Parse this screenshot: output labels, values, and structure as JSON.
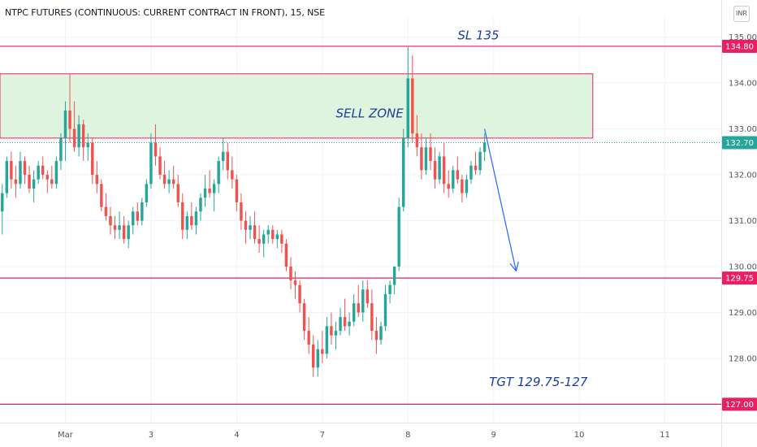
{
  "header": {
    "title": "NTPC FUTURES (CONTINUOUS: CURRENT CONTRACT IN FRONT), 15, NSE",
    "currency": "INR"
  },
  "chart_data": {
    "type": "candlestick",
    "title": "NTPC FUTURES (CONTINUOUS: CURRENT CONTRACT IN FRONT), 15, NSE",
    "ylim": [
      126.6,
      135.1
    ],
    "yticks": [
      "128.00",
      "129.00",
      "130.00",
      "131.00",
      "132.00",
      "133.00",
      "134.00",
      "135.00"
    ],
    "xticks": [
      {
        "label": "Mar",
        "index": 14
      },
      {
        "label": "3",
        "index": 33
      },
      {
        "label": "4",
        "index": 52
      },
      {
        "label": "7",
        "index": 71
      },
      {
        "label": "8",
        "index": 90
      },
      {
        "label": "9",
        "index": 109
      },
      {
        "label": "10",
        "index": 128
      },
      {
        "label": "11",
        "index": 147
      }
    ],
    "bar_count": 160,
    "candles": [
      [
        131.2,
        131.8,
        130.7,
        131.6
      ],
      [
        131.6,
        132.4,
        131.5,
        132.3
      ],
      [
        132.3,
        132.5,
        131.7,
        131.9
      ],
      [
        131.9,
        132.2,
        131.5,
        131.8
      ],
      [
        131.8,
        132.5,
        131.7,
        132.3
      ],
      [
        132.3,
        132.4,
        131.8,
        132.0
      ],
      [
        132.0,
        132.2,
        131.6,
        131.7
      ],
      [
        131.7,
        132.1,
        131.4,
        131.9
      ],
      [
        131.9,
        132.3,
        131.8,
        132.2
      ],
      [
        132.2,
        132.4,
        131.9,
        132.0
      ],
      [
        132.0,
        132.1,
        131.6,
        131.9
      ],
      [
        131.9,
        132.2,
        131.7,
        131.8
      ],
      [
        131.8,
        132.4,
        131.7,
        132.3
      ],
      [
        132.3,
        132.9,
        132.1,
        132.8
      ],
      [
        132.8,
        133.6,
        132.3,
        133.4
      ],
      [
        133.4,
        134.2,
        132.7,
        133.0
      ],
      [
        133.0,
        133.6,
        132.5,
        132.6
      ],
      [
        132.6,
        133.3,
        132.4,
        133.1
      ],
      [
        133.1,
        133.2,
        132.3,
        132.6
      ],
      [
        132.6,
        132.9,
        132.3,
        132.7
      ],
      [
        132.7,
        132.8,
        131.8,
        132.0
      ],
      [
        132.0,
        132.3,
        131.6,
        131.8
      ],
      [
        131.8,
        131.9,
        131.2,
        131.3
      ],
      [
        131.3,
        131.6,
        131.0,
        131.1
      ],
      [
        131.1,
        131.3,
        130.7,
        130.9
      ],
      [
        130.9,
        131.1,
        130.6,
        130.8
      ],
      [
        130.8,
        131.2,
        130.6,
        130.9
      ],
      [
        130.9,
        131.1,
        130.5,
        130.6
      ],
      [
        130.6,
        131.0,
        130.4,
        130.9
      ],
      [
        130.9,
        131.3,
        130.7,
        131.2
      ],
      [
        131.2,
        131.4,
        130.9,
        131.0
      ],
      [
        131.0,
        131.5,
        130.9,
        131.4
      ],
      [
        131.4,
        131.9,
        131.3,
        131.8
      ],
      [
        131.8,
        132.9,
        131.7,
        132.7
      ],
      [
        132.7,
        133.1,
        132.2,
        132.4
      ],
      [
        132.4,
        132.6,
        131.9,
        132.0
      ],
      [
        132.0,
        132.3,
        131.7,
        131.8
      ],
      [
        131.8,
        132.1,
        131.6,
        131.9
      ],
      [
        131.9,
        132.2,
        131.7,
        131.8
      ],
      [
        131.8,
        132.0,
        131.3,
        131.4
      ],
      [
        131.4,
        131.6,
        130.6,
        130.8
      ],
      [
        130.8,
        131.2,
        130.6,
        131.1
      ],
      [
        131.1,
        131.4,
        130.8,
        130.9
      ],
      [
        130.9,
        131.3,
        130.7,
        131.2
      ],
      [
        131.2,
        131.6,
        131.0,
        131.5
      ],
      [
        131.5,
        132.0,
        131.3,
        131.7
      ],
      [
        131.7,
        132.1,
        131.5,
        131.6
      ],
      [
        131.6,
        131.9,
        131.2,
        131.8
      ],
      [
        131.8,
        132.4,
        131.6,
        132.3
      ],
      [
        132.3,
        132.8,
        132.1,
        132.5
      ],
      [
        132.5,
        132.7,
        131.9,
        132.1
      ],
      [
        132.1,
        132.4,
        131.7,
        131.9
      ],
      [
        131.9,
        132.0,
        131.2,
        131.4
      ],
      [
        131.4,
        131.6,
        130.8,
        131.0
      ],
      [
        131.0,
        131.2,
        130.5,
        130.8
      ],
      [
        130.8,
        131.1,
        130.6,
        130.9
      ],
      [
        130.9,
        131.2,
        130.5,
        130.6
      ],
      [
        130.6,
        130.9,
        130.3,
        130.5
      ],
      [
        130.5,
        130.8,
        130.2,
        130.7
      ],
      [
        130.7,
        130.9,
        130.5,
        130.8
      ],
      [
        130.8,
        130.9,
        130.5,
        130.6
      ],
      [
        130.6,
        130.8,
        130.4,
        130.7
      ],
      [
        130.7,
        130.8,
        130.3,
        130.5
      ],
      [
        130.5,
        130.6,
        129.9,
        130.0
      ],
      [
        130.0,
        130.2,
        129.5,
        129.7
      ],
      [
        129.7,
        129.9,
        129.3,
        129.6
      ],
      [
        129.6,
        129.7,
        129.0,
        129.2
      ],
      [
        129.2,
        129.3,
        128.4,
        128.6
      ],
      [
        128.6,
        128.9,
        128.1,
        128.3
      ],
      [
        128.3,
        128.5,
        127.6,
        127.8
      ],
      [
        127.8,
        128.4,
        127.6,
        128.2
      ],
      [
        128.2,
        128.6,
        127.9,
        128.1
      ],
      [
        128.1,
        128.9,
        128.0,
        128.7
      ],
      [
        128.7,
        129.0,
        128.3,
        128.5
      ],
      [
        128.5,
        128.8,
        128.2,
        128.6
      ],
      [
        128.6,
        129.1,
        128.5,
        128.9
      ],
      [
        128.9,
        129.3,
        128.6,
        128.7
      ],
      [
        128.7,
        129.0,
        128.5,
        128.8
      ],
      [
        128.8,
        129.4,
        128.7,
        129.2
      ],
      [
        129.2,
        129.6,
        128.9,
        129.0
      ],
      [
        129.0,
        129.7,
        128.8,
        129.5
      ],
      [
        129.5,
        129.7,
        129.1,
        129.2
      ],
      [
        129.2,
        129.5,
        128.4,
        128.6
      ],
      [
        128.6,
        128.9,
        128.1,
        128.4
      ],
      [
        128.4,
        128.8,
        128.3,
        128.7
      ],
      [
        128.7,
        129.6,
        128.6,
        129.4
      ],
      [
        129.4,
        129.7,
        129.2,
        129.6
      ],
      [
        129.6,
        130.0,
        129.4,
        130.0
      ],
      [
        130.0,
        131.5,
        129.9,
        131.3
      ],
      [
        131.3,
        133.0,
        131.2,
        132.8
      ],
      [
        132.8,
        134.8,
        132.6,
        134.1
      ],
      [
        134.1,
        134.6,
        132.7,
        132.9
      ],
      [
        132.9,
        133.3,
        132.4,
        132.6
      ],
      [
        132.6,
        132.9,
        131.9,
        132.1
      ],
      [
        132.1,
        132.8,
        132.0,
        132.6
      ],
      [
        132.6,
        132.9,
        132.1,
        132.3
      ],
      [
        132.3,
        132.6,
        131.7,
        131.9
      ],
      [
        131.9,
        132.5,
        131.8,
        132.4
      ],
      [
        132.4,
        132.7,
        131.6,
        131.8
      ],
      [
        131.8,
        132.1,
        131.5,
        131.7
      ],
      [
        131.7,
        132.2,
        131.6,
        132.1
      ],
      [
        132.1,
        132.4,
        131.8,
        131.9
      ],
      [
        131.9,
        132.0,
        131.4,
        131.6
      ],
      [
        131.6,
        132.0,
        131.5,
        131.9
      ],
      [
        131.9,
        132.3,
        131.8,
        132.2
      ],
      [
        132.2,
        132.5,
        132.0,
        132.1
      ],
      [
        132.1,
        132.6,
        132.0,
        132.5
      ],
      [
        132.5,
        132.9,
        132.3,
        132.7
      ]
    ],
    "levels": [
      {
        "label": "134.80",
        "value": 134.8,
        "color": "#e91e63"
      },
      {
        "label": "132.70",
        "value": 132.7,
        "color": "#26a69a"
      },
      {
        "label": "129.75",
        "value": 129.75,
        "color": "#e91e63"
      },
      {
        "label": "127.00",
        "value": 127.0,
        "color": "#e91e63"
      }
    ],
    "sell_zone": {
      "top": 134.2,
      "bottom": 132.8,
      "start_index": 0,
      "end_index": 131,
      "fill": "#d8f2d9",
      "border": "#e91e63"
    },
    "arrow": {
      "from": [
        107,
        133.0
      ],
      "to": [
        114,
        129.9
      ],
      "color": "#2962ff"
    },
    "annotations": [
      {
        "text": "SL 135",
        "index": 101,
        "value": 134.95
      },
      {
        "text": "SELL ZONE",
        "index": 74,
        "value": 133.25
      },
      {
        "text": "TGT 129.75-127",
        "index": 108,
        "value": 127.4
      }
    ],
    "up_color": "#26a69a",
    "down_color": "#ef5350",
    "grid": true
  }
}
